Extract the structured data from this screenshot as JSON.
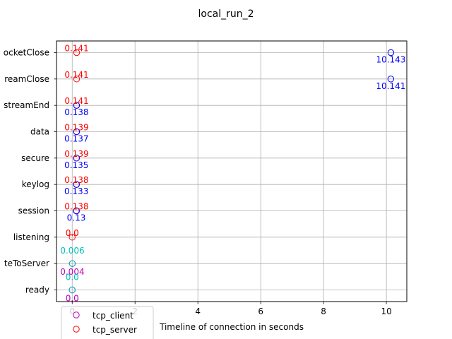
{
  "chart_data": {
    "type": "scatter",
    "title": "local_run_2",
    "xlabel": "Timeline of connection in seconds",
    "ylabel": "",
    "xlim": [
      -0.5,
      10.65
    ],
    "xticks": [
      0,
      2,
      4,
      6,
      8,
      10
    ],
    "grid": true,
    "legend_position": "lower-left",
    "categories": [
      "ready",
      "writeToServer",
      "listening",
      "session",
      "keylog",
      "secure",
      "data",
      "streamEnd",
      "streamClose",
      "socketClose"
    ],
    "category_tick_labels": [
      "ready",
      "teToServer",
      "listening",
      "session",
      "keylog",
      "secure",
      "data",
      "streamEnd",
      "reamClose",
      "ocketClose"
    ],
    "series": [
      {
        "name": "tcp_client",
        "color": "#bf00bf",
        "points": [
          {
            "category": "ready",
            "x": 0.0,
            "label": "0.0"
          },
          {
            "category": "writeToServer",
            "x": 0.004,
            "label": "0.004"
          }
        ]
      },
      {
        "name": "tcp_server",
        "color": "#ff0000",
        "points": [
          {
            "category": "listening",
            "x": 0.0,
            "label": "0.0"
          },
          {
            "category": "session",
            "x": 0.138,
            "label": "0.138"
          },
          {
            "category": "keylog",
            "x": 0.138,
            "label": "0.138"
          },
          {
            "category": "secure",
            "x": 0.139,
            "label": "0.139"
          },
          {
            "category": "data",
            "x": 0.139,
            "label": "0.139"
          },
          {
            "category": "streamEnd",
            "x": 0.141,
            "label": "0.141"
          },
          {
            "category": "streamClose",
            "x": 0.141,
            "label": "0.141"
          },
          {
            "category": "socketClose",
            "x": 0.141,
            "label": "0.141"
          }
        ]
      },
      {
        "name": "",
        "color": "#0000ff",
        "points": [
          {
            "category": "session",
            "x": 0.13,
            "label": "0.13"
          },
          {
            "category": "keylog",
            "x": 0.133,
            "label": "0.133"
          },
          {
            "category": "secure",
            "x": 0.135,
            "label": "0.135"
          },
          {
            "category": "data",
            "x": 0.137,
            "label": "0.137"
          },
          {
            "category": "streamEnd",
            "x": 0.138,
            "label": "0.138"
          },
          {
            "category": "streamClose",
            "x": 10.141,
            "label": "10.141"
          },
          {
            "category": "socketClose",
            "x": 10.143,
            "label": "10.143"
          }
        ]
      },
      {
        "name": "",
        "color": "#00bfbf",
        "points": [
          {
            "category": "ready",
            "x": 0.0,
            "label": "0.0"
          },
          {
            "category": "writeToServer",
            "x": 0.006,
            "label": "0.006"
          }
        ]
      }
    ]
  }
}
